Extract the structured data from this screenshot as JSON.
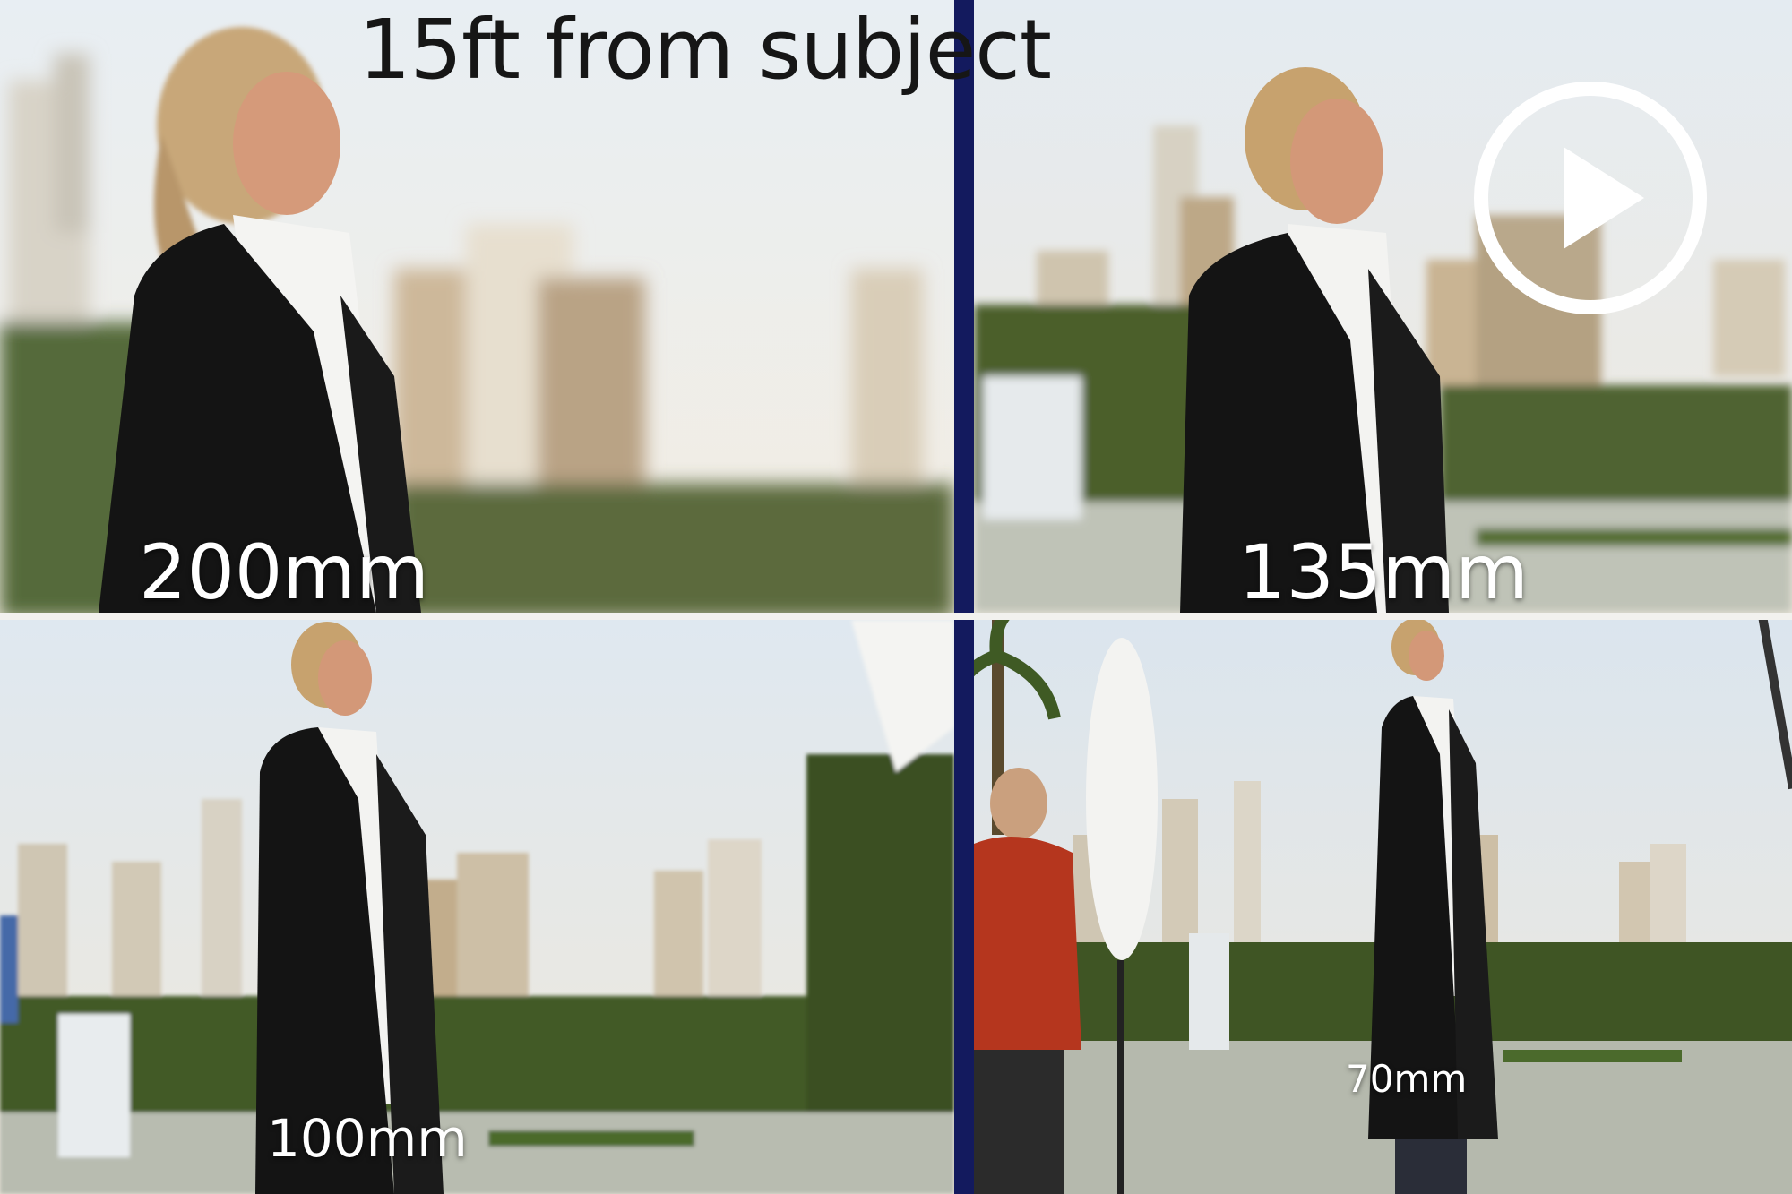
{
  "heading": "15ft from subject",
  "panels": [
    {
      "focal_length": "200mm"
    },
    {
      "focal_length": "135mm"
    },
    {
      "focal_length": "100mm"
    },
    {
      "focal_length": "70mm"
    }
  ],
  "play_button": {
    "icon": "play-icon"
  },
  "colors": {
    "divider": "#131a5e",
    "sky": "#dfe8f0",
    "jacket": "#141414",
    "label_text": "#ffffff"
  }
}
